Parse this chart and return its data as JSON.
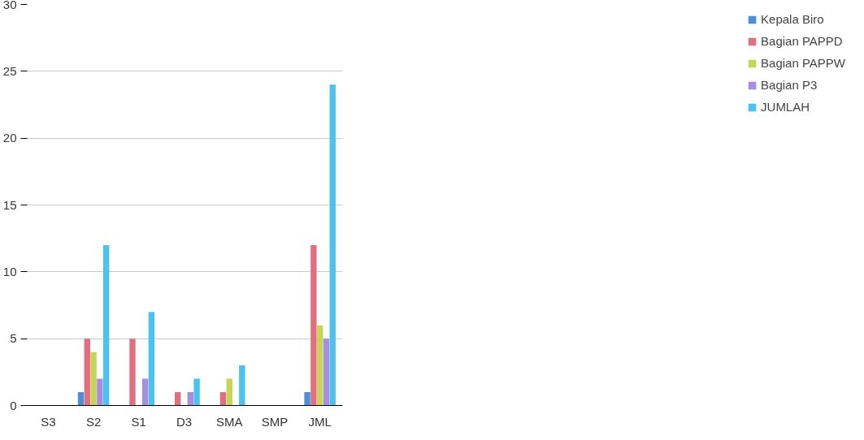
{
  "chart_data": {
    "type": "bar",
    "categories": [
      "S3",
      "S2",
      "S1",
      "D3",
      "SMA",
      "SMP",
      "JML"
    ],
    "series": [
      {
        "name": "Kepala Biro",
        "color": "#4f8fd8",
        "values": [
          0,
          1,
          0,
          0,
          0,
          0,
          1
        ]
      },
      {
        "name": "Bagian PAPPD",
        "color": "#e0707f",
        "values": [
          0,
          5,
          5,
          1,
          1,
          0,
          12
        ]
      },
      {
        "name": "Bagian PAPPW",
        "color": "#c6d458",
        "values": [
          0,
          4,
          0,
          0,
          2,
          0,
          6
        ]
      },
      {
        "name": "Bagian P3",
        "color": "#a78ee0",
        "values": [
          0,
          2,
          2,
          1,
          0,
          0,
          5
        ]
      },
      {
        "name": "JUMLAH",
        "color": "#4cc3ee",
        "values": [
          0,
          12,
          7,
          2,
          3,
          0,
          24
        ]
      }
    ],
    "ylim": [
      0,
      30
    ],
    "yticks": [
      0,
      5,
      10,
      15,
      20,
      25,
      30
    ],
    "grid": "y",
    "legend": "right"
  }
}
